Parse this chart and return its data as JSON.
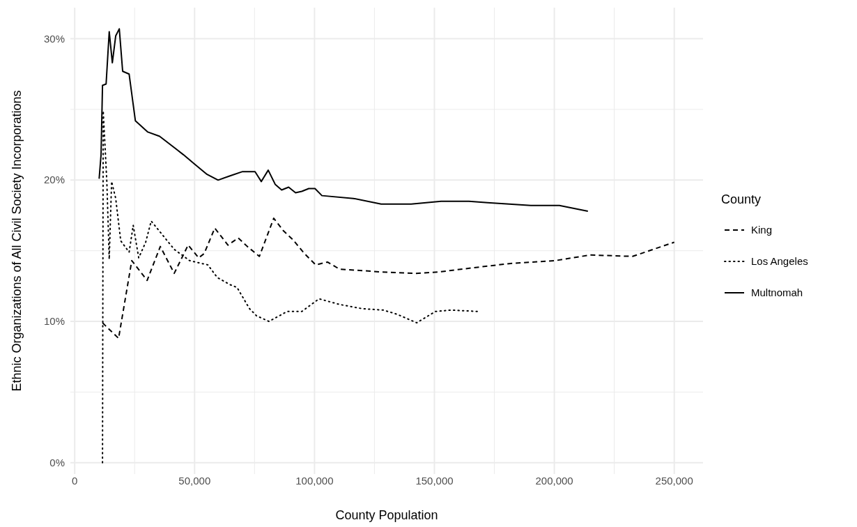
{
  "chart_data": {
    "type": "line",
    "xlabel": "County Population",
    "ylabel": "Ethnic Organizations of All Civil Society Incorporations",
    "legend_title": "County",
    "legend": "right",
    "grid": true,
    "xlim": [
      -1800,
      262000
    ],
    "ylim": [
      -0.8,
      32.2
    ],
    "xticks": [
      {
        "value": 0,
        "label": "0"
      },
      {
        "value": 25000,
        "label": null
      },
      {
        "value": 50000,
        "label": "50,000"
      },
      {
        "value": 75000,
        "label": null
      },
      {
        "value": 100000,
        "label": "100,000"
      },
      {
        "value": 125000,
        "label": null
      },
      {
        "value": 150000,
        "label": "150,000"
      },
      {
        "value": 175000,
        "label": null
      },
      {
        "value": 200000,
        "label": "200,000"
      },
      {
        "value": 225000,
        "label": null
      },
      {
        "value": 250000,
        "label": "250,000"
      }
    ],
    "yticks": [
      {
        "value": 0,
        "label": "0%"
      },
      {
        "value": 5,
        "label": null
      },
      {
        "value": 10,
        "label": "10%"
      },
      {
        "value": 15,
        "label": null
      },
      {
        "value": 20,
        "label": "20%"
      },
      {
        "value": 25,
        "label": null
      },
      {
        "value": 30,
        "label": "30%"
      }
    ],
    "series": [
      {
        "name": "King",
        "color": "#000000",
        "line_style": "dashed",
        "x": [
          11600,
          12800,
          18300,
          23800,
          30200,
          35700,
          41500,
          47300,
          51700,
          54000,
          58400,
          63900,
          68200,
          72000,
          77000,
          83000,
          87100,
          90900,
          95800,
          100500,
          105400,
          110400,
          127800,
          142300,
          151900,
          166400,
          181800,
          200400,
          214900,
          232600,
          250000
        ],
        "values": [
          9.9,
          9.7,
          8.8,
          14.3,
          12.9,
          15.3,
          13.4,
          15.4,
          14.5,
          14.8,
          16.6,
          15.4,
          15.9,
          15.3,
          14.6,
          17.3,
          16.4,
          15.8,
          14.8,
          14.0,
          14.2,
          13.7,
          13.5,
          13.4,
          13.5,
          13.8,
          14.1,
          14.3,
          14.7,
          14.6,
          15.6
        ]
      },
      {
        "name": "Los Angeles",
        "color": "#000000",
        "line_style": "dotted",
        "x": [
          11600,
          11900,
          13400,
          14400,
          15400,
          17100,
          19200,
          22700,
          24400,
          26700,
          29600,
          31900,
          41500,
          47900,
          55500,
          59500,
          64800,
          67700,
          72900,
          75800,
          81000,
          88600,
          94700,
          101900,
          110400,
          119900,
          128700,
          134500,
          142600,
          150400,
          156800,
          168700
        ],
        "values": [
          0.0,
          24.9,
          19.9,
          14.4,
          19.9,
          18.7,
          15.7,
          14.9,
          16.8,
          14.5,
          15.6,
          17.1,
          15.1,
          14.3,
          14.0,
          13.1,
          12.6,
          12.4,
          10.9,
          10.4,
          10.0,
          10.7,
          10.7,
          11.6,
          11.2,
          10.9,
          10.8,
          10.5,
          9.9,
          10.7,
          10.8,
          10.7
        ]
      },
      {
        "name": "Multnomah",
        "color": "#000000",
        "line_style": "solid",
        "x": [
          10200,
          11000,
          11600,
          13100,
          14400,
          15700,
          17100,
          18600,
          20000,
          22700,
          25300,
          30500,
          35400,
          45300,
          50200,
          55200,
          59800,
          64800,
          70000,
          75200,
          77800,
          80700,
          83600,
          86300,
          89200,
          92100,
          94700,
          97600,
          100200,
          103100,
          116200,
          127800,
          140300,
          152800,
          164400,
          172200,
          190200,
          202100,
          214000
        ],
        "values": [
          20.1,
          21.8,
          26.7,
          26.8,
          30.5,
          28.3,
          30.2,
          30.7,
          27.7,
          27.5,
          24.2,
          23.4,
          23.1,
          21.8,
          21.1,
          20.4,
          20.0,
          20.3,
          20.6,
          20.6,
          19.9,
          20.7,
          19.7,
          19.3,
          19.5,
          19.1,
          19.2,
          19.4,
          19.4,
          18.9,
          18.7,
          18.3,
          18.3,
          18.5,
          18.5,
          18.4,
          18.2,
          18.2,
          17.8
        ]
      }
    ]
  }
}
